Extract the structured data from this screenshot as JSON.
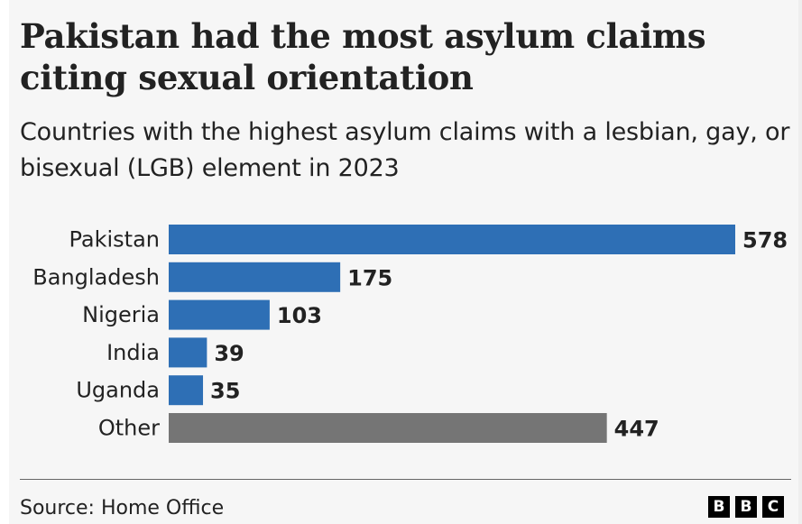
{
  "title": "Pakistan had the most asylum claims citing sexual orientation",
  "subtitle": "Countries with the highest asylum claims with a lesbian, gay, or bisexual (LGB) element in 2023",
  "source": "Source: Home Office",
  "logo": [
    "B",
    "B",
    "C"
  ],
  "colors": {
    "highlight": "#2e6fb5",
    "other": "#757575"
  },
  "chart_data": {
    "type": "bar",
    "orientation": "horizontal",
    "title": "Pakistan had the most asylum claims citing sexual orientation",
    "subtitle": "Countries with the highest asylum claims with a lesbian, gay, or bisexual (LGB) element in 2023",
    "categories": [
      "Pakistan",
      "Bangladesh",
      "Nigeria",
      "India",
      "Uganda",
      "Other"
    ],
    "values": [
      578,
      175,
      103,
      39,
      35,
      447
    ],
    "bar_colors": [
      "#2e6fb5",
      "#2e6fb5",
      "#2e6fb5",
      "#2e6fb5",
      "#2e6fb5",
      "#757575"
    ],
    "xlabel": "",
    "ylabel": "",
    "xlim": [
      0,
      578
    ],
    "grid": false,
    "legend": "none",
    "data_labels": true
  }
}
